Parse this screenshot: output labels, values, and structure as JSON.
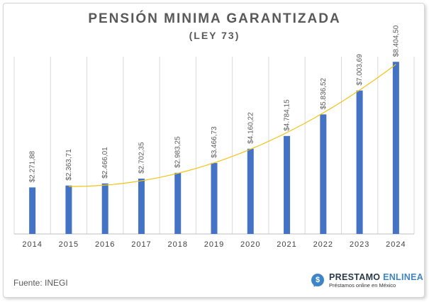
{
  "chart_data": {
    "type": "bar",
    "title": "PENSIÓN MINIMA GARANTIZADA",
    "subtitle": "(LEY 73)",
    "categories": [
      "2014",
      "2015",
      "2016",
      "2017",
      "2018",
      "2019",
      "2020",
      "2021",
      "2022",
      "2023",
      "2024"
    ],
    "values": [
      2271.88,
      2363.71,
      2466.01,
      2702.35,
      2983.25,
      3466.73,
      4160.22,
      4784.15,
      5836.52,
      7003.69,
      8404.5
    ],
    "data_labels": [
      "$2.271,88",
      "$2.363,71",
      "$2.466,01",
      "$2.702,35",
      "$2.983,25",
      "$3.466,73",
      "$4.160,22",
      "$4.784,15",
      "$5.836,52",
      "$7.003,69",
      "$8.404,50"
    ],
    "ylim": [
      0,
      9000
    ],
    "trendline": {
      "type": "polynomial",
      "color": "#f2c314"
    },
    "grid": "vertical",
    "bar_color": "#4472c4",
    "legend": "none"
  },
  "footer": {
    "source": "Fuente: INEGI",
    "logo_symbol": "$",
    "logo_name_main": "PRESTAMO ",
    "logo_name_accent": "ENLINEA",
    "logo_tagline": "Préstamos online en México"
  }
}
